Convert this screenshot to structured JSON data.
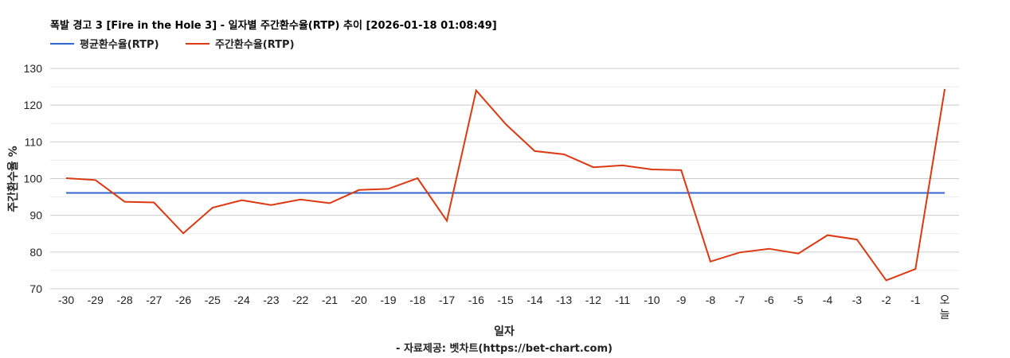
{
  "chart_data": {
    "type": "line",
    "title": "폭발 경고 3 [Fire in the Hole 3] - 일자별 주간환수율(RTP) 추이 [2026-01-18 01:08:49]",
    "xlabel": "일자",
    "ylabel": "주간환수율 %",
    "credit": "- 자료제공: 벳차트(https://bet-chart.com)",
    "ylim": [
      70,
      130
    ],
    "yticks": [
      70,
      80,
      90,
      100,
      110,
      120,
      130
    ],
    "grid": true,
    "minor_grid": true,
    "legend_position": "top-left",
    "categories": [
      "-30",
      "-29",
      "-28",
      "-27",
      "-26",
      "-25",
      "-24",
      "-23",
      "-22",
      "-21",
      "-20",
      "-19",
      "-18",
      "-17",
      "-16",
      "-15",
      "-14",
      "-13",
      "-12",
      "-11",
      "-10",
      "-9",
      "-8",
      "-7",
      "-6",
      "-5",
      "-4",
      "-3",
      "-2",
      "-1",
      "오늘"
    ],
    "series": [
      {
        "name": "평균환수율(RTP)",
        "color": "#3366cc",
        "values": [
          96.1,
          96.1,
          96.1,
          96.1,
          96.1,
          96.1,
          96.1,
          96.1,
          96.1,
          96.1,
          96.1,
          96.1,
          96.1,
          96.1,
          96.1,
          96.1,
          96.1,
          96.1,
          96.1,
          96.1,
          96.1,
          96.1,
          96.1,
          96.1,
          96.1,
          96.1,
          96.1,
          96.1,
          96.1,
          96.1,
          96.1
        ]
      },
      {
        "name": "주간환수율(RTP)",
        "color": "#dc3912",
        "values": [
          100.1,
          99.6,
          93.7,
          93.5,
          85.1,
          92.1,
          94.1,
          92.8,
          94.3,
          93.3,
          96.9,
          97.2,
          100.1,
          88.5,
          124.0,
          114.9,
          107.5,
          106.6,
          103.1,
          103.6,
          102.5,
          102.3,
          77.4,
          79.9,
          80.9,
          79.6,
          84.6,
          83.4,
          72.3,
          75.4,
          124.4
        ]
      }
    ]
  }
}
